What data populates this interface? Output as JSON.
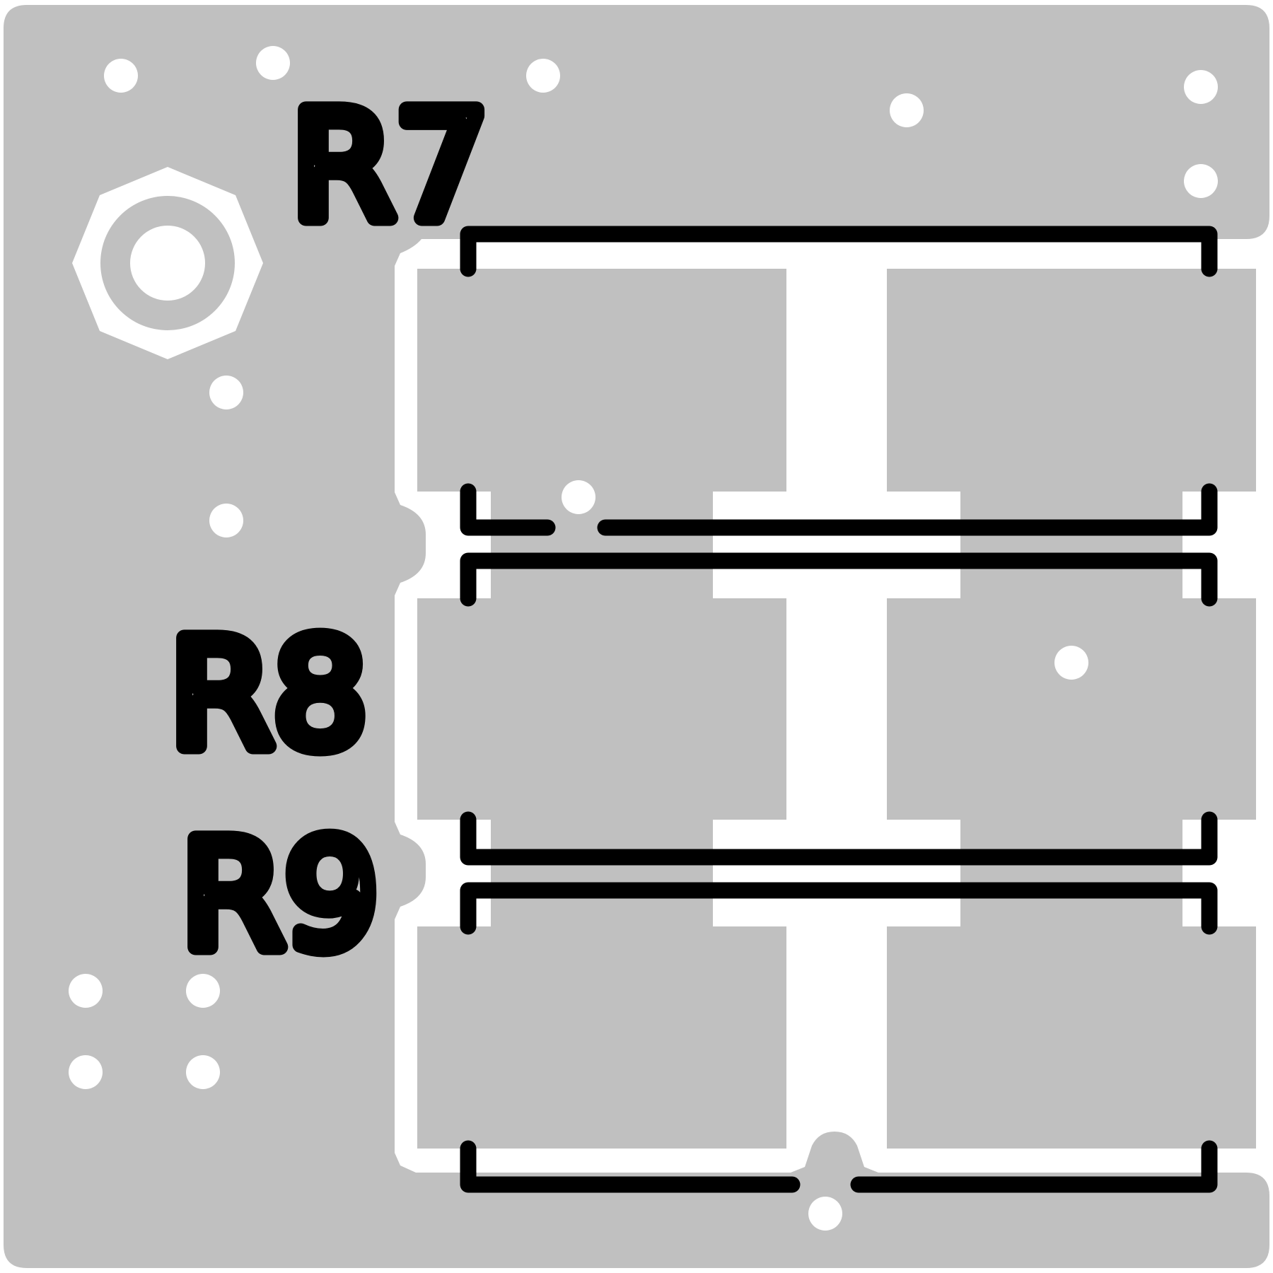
{
  "board": {
    "copper_color": "#c0c0c0",
    "silkscreen_color": "#000000",
    "drill_color": "#ffffff",
    "background_color": "#ffffff"
  },
  "components": [
    {
      "id": "r7",
      "designator": "R7"
    },
    {
      "id": "r8",
      "designator": "R8"
    },
    {
      "id": "r9",
      "designator": "R9"
    }
  ]
}
